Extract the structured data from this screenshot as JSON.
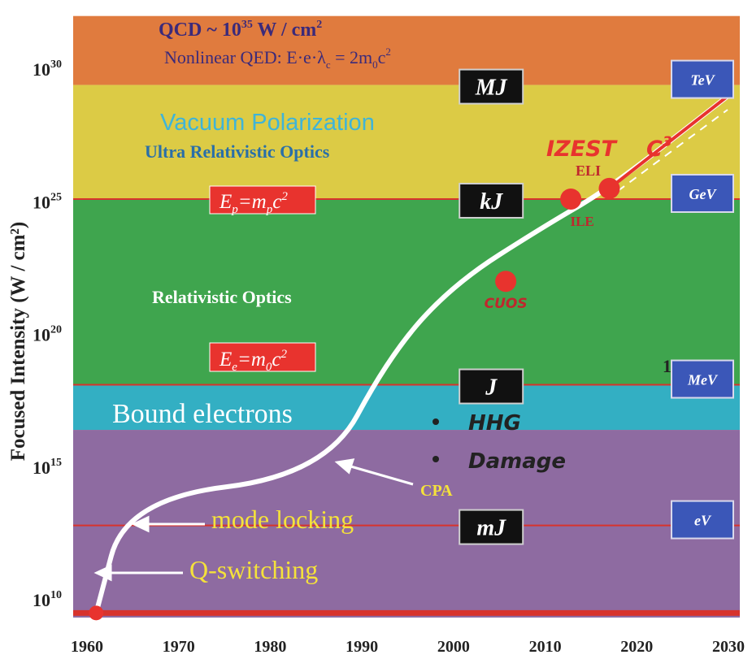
{
  "chart_data": {
    "type": "line",
    "ylabel": "Focused Intensity (W / cm²)",
    "x_ticks": [
      1960,
      1970,
      1980,
      1990,
      2000,
      2010,
      2020,
      2030
    ],
    "y_ticks": [
      {
        "base": "10",
        "exp": "10",
        "value": 10
      },
      {
        "base": "10",
        "exp": "15",
        "value": 15
      },
      {
        "base": "10",
        "exp": "20",
        "value": 20
      },
      {
        "base": "10",
        "exp": "25",
        "value": 25
      },
      {
        "base": "10",
        "exp": "30",
        "value": 30
      }
    ],
    "xlim": [
      1960,
      2030
    ],
    "ylim_log10": [
      8.5,
      32
    ],
    "y_scale": "log",
    "regions": [
      {
        "name": "QCD",
        "log10_from": 29.4,
        "log10_to": 32,
        "color": "#E07B3E"
      },
      {
        "name": "Ultra Relativistic Optics",
        "log10_from": 25.1,
        "log10_to": 29.4,
        "color": "#DCCB45"
      },
      {
        "name": "Relativistic Optics",
        "log10_from": 18.1,
        "log10_to": 25.1,
        "color": "#3FA54E"
      },
      {
        "name": "Bound electrons",
        "log10_from": 16.4,
        "log10_to": 18.1,
        "color": "#33AFC3"
      },
      {
        "name": "Bound electrons low",
        "log10_from": 8.5,
        "log10_to": 16.4,
        "color": "#8E6BA1"
      }
    ],
    "thresholds": [
      {
        "log10": 25.1,
        "label": "E_p = m_p c^2"
      },
      {
        "log10": 18.1,
        "label": "E_e = m_0 c^2"
      },
      {
        "log10": 12.8,
        "label": ""
      },
      {
        "log10": 9.5,
        "label": ""
      }
    ],
    "series": [
      {
        "points": [
          [
            1961,
            9.5
          ],
          [
            1964.3,
            13.8
          ],
          [
            1986,
            14.7
          ],
          [
            1993,
            19.2
          ],
          [
            2000,
            21.9
          ],
          [
            2010,
            24.1
          ],
          [
            2017,
            25.5
          ],
          [
            2030,
            29.0
          ]
        ],
        "color": "#ffffff"
      }
    ],
    "milestones": [
      {
        "label": "CUOS",
        "x": 2005.7,
        "log10": 22.0
      },
      {
        "label": "ILE",
        "x": 2012.8,
        "log10": 25.1
      },
      {
        "label": "ELI",
        "x": 2017,
        "log10": 25.5
      }
    ],
    "start_point": {
      "x": 1961,
      "log10": 9.5
    },
    "energy_boxes": [
      {
        "label": "MJ",
        "x": 2005,
        "log10": 29.4
      },
      {
        "label": "kJ",
        "x": 2005,
        "log10": 25.1
      },
      {
        "label": "J",
        "x": 2005,
        "log10": 18.1
      },
      {
        "label": "mJ",
        "x": 2005,
        "log10": 12.8
      }
    ],
    "particle_boxes": [
      {
        "label": "TeV",
        "log10": 29.4
      },
      {
        "label": "GeV",
        "log10": 25.1
      },
      {
        "label": "MeV",
        "log10": 18.1
      },
      {
        "label": "eV",
        "log10": 12.8
      }
    ],
    "annotations": {
      "qcd_a": "QCD ~ 10",
      "qcd_exp": "35",
      "qcd_b": " W / cm",
      "qcd_sq": "2",
      "nonlinear": "Nonlinear QED: E·e·λ",
      "nonlinear_sub": "c",
      "nonlinear_b": " = 2m",
      "nonlinear_sub2": "0",
      "nonlinear_c": "c",
      "nonlinear_sq": "2",
      "vacuum": "Vacuum Polarization",
      "ultra": "Ultra Relativistic Optics",
      "relativistic": "Relativistic Optics",
      "bound": "Bound electrons",
      "hhg": "HHG",
      "damage": "Damage",
      "mode_locking": "mode locking",
      "q_switching": "Q-switching",
      "cpa": "CPA",
      "izest": "IZEST",
      "c3": "C",
      "c3_exp": "3",
      "ep_label": "E",
      "ep_sub": "p",
      "ep_mid": "=m",
      "ep_sub2": "p",
      "ep_end": "c",
      "ep_sq": "2",
      "ee_label": "E",
      "ee_sub": "e",
      "ee_mid": "=m",
      "ee_sub2": "0",
      "ee_end": "c",
      "ee_sq": "2",
      "mev_stray": "1"
    }
  }
}
